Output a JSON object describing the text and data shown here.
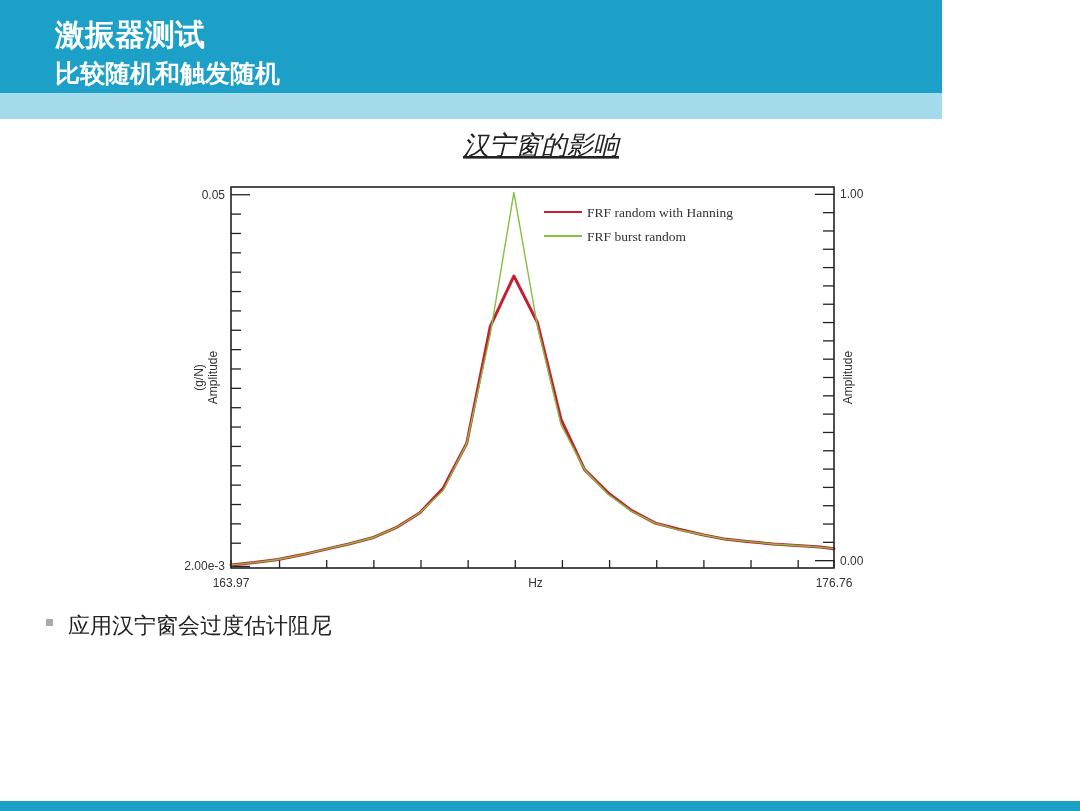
{
  "chart_data": {
    "type": "line",
    "title": "激振器测试",
    "subtitle": "比较随机和触发随机",
    "annotations": [
      "汉宁窗的影响",
      "应用汉宁窗会过度估计阻尼"
    ],
    "xlabel": "Hz",
    "ylabel": "(g/N)\nAmplitude",
    "y2label": "Amplitude",
    "x": [
      163.97,
      164.47,
      164.97,
      165.47,
      165.97,
      166.47,
      166.97,
      167.47,
      167.97,
      168.47,
      168.97,
      169.47,
      169.97,
      170.47,
      170.97,
      171.47,
      171.97,
      172.47,
      172.97,
      173.47,
      173.97,
      174.47,
      174.97,
      175.47,
      175.97,
      176.47,
      176.76
    ],
    "series": [
      {
        "name": "FRF random with Hanning",
        "color": "#c42032",
        "values": [
          0.0022,
          0.0025,
          0.0029,
          0.0035,
          0.0042,
          0.0049,
          0.0057,
          0.007,
          0.0089,
          0.0121,
          0.0179,
          0.033,
          0.0395,
          0.0335,
          0.021,
          0.0145,
          0.0115,
          0.0092,
          0.0076,
          0.0068,
          0.0061,
          0.0055,
          0.0052,
          0.0049,
          0.0047,
          0.0045,
          0.0043
        ]
      },
      {
        "name": "FRF burst random",
        "color": "#84c043",
        "values": [
          0.0022,
          0.0025,
          0.0029,
          0.0035,
          0.0042,
          0.0049,
          0.0057,
          0.007,
          0.0089,
          0.0118,
          0.0179,
          0.032,
          0.0503,
          0.033,
          0.0203,
          0.0145,
          0.0113,
          0.0091,
          0.0076,
          0.0067,
          0.0061,
          0.0055,
          0.0052,
          0.0049,
          0.0047,
          0.0045,
          0.0043
        ]
      }
    ],
    "xlim": [
      163.97,
      176.76
    ],
    "xticks": [
      {
        "value": 163.97,
        "label": "163.97"
      },
      {
        "value": 165,
        "label": null
      },
      {
        "value": 166,
        "label": null
      },
      {
        "value": 167,
        "label": null
      },
      {
        "value": 168,
        "label": null
      },
      {
        "value": 169,
        "label": null
      },
      {
        "value": 170,
        "label": null
      },
      {
        "value": 171,
        "label": null
      },
      {
        "value": 172,
        "label": null
      },
      {
        "value": 173,
        "label": null
      },
      {
        "value": 174,
        "label": null
      },
      {
        "value": 175,
        "label": null
      },
      {
        "value": 176,
        "label": null
      },
      {
        "value": 176.76,
        "label": "176.76"
      }
    ],
    "ylim": [
      0.0018,
      0.051
    ],
    "yticks": [
      {
        "value": 0.002,
        "label": "2.00e-3"
      },
      {
        "value": 0.005,
        "label": null
      },
      {
        "value": 0.0075,
        "label": null
      },
      {
        "value": 0.01,
        "label": null
      },
      {
        "value": 0.0125,
        "label": null
      },
      {
        "value": 0.015,
        "label": null
      },
      {
        "value": 0.0175,
        "label": null
      },
      {
        "value": 0.02,
        "label": null
      },
      {
        "value": 0.0225,
        "label": null
      },
      {
        "value": 0.025,
        "label": null
      },
      {
        "value": 0.0275,
        "label": null
      },
      {
        "value": 0.03,
        "label": null
      },
      {
        "value": 0.0325,
        "label": null
      },
      {
        "value": 0.035,
        "label": null
      },
      {
        "value": 0.0375,
        "label": null
      },
      {
        "value": 0.04,
        "label": null
      },
      {
        "value": 0.0425,
        "label": null
      },
      {
        "value": 0.045,
        "label": null
      },
      {
        "value": 0.0475,
        "label": null
      },
      {
        "value": 0.05,
        "label": "0.05"
      }
    ],
    "y2lim": [
      -0.02,
      1.02
    ],
    "y2ticks": [
      {
        "value": 0,
        "label": "0.00"
      },
      {
        "value": 0.05,
        "label": null
      },
      {
        "value": 0.1,
        "label": null
      },
      {
        "value": 0.15,
        "label": null
      },
      {
        "value": 0.2,
        "label": null
      },
      {
        "value": 0.25,
        "label": null
      },
      {
        "value": 0.3,
        "label": null
      },
      {
        "value": 0.35,
        "label": null
      },
      {
        "value": 0.4,
        "label": null
      },
      {
        "value": 0.45,
        "label": null
      },
      {
        "value": 0.5,
        "label": null
      },
      {
        "value": 0.55,
        "label": null
      },
      {
        "value": 0.6,
        "label": null
      },
      {
        "value": 0.65,
        "label": null
      },
      {
        "value": 0.7,
        "label": null
      },
      {
        "value": 0.75,
        "label": null
      },
      {
        "value": 0.8,
        "label": null
      },
      {
        "value": 0.85,
        "label": null
      },
      {
        "value": 0.9,
        "label": null
      },
      {
        "value": 0.95,
        "label": null
      },
      {
        "value": 1,
        "label": "1.00"
      }
    ],
    "legend": "top right"
  }
}
